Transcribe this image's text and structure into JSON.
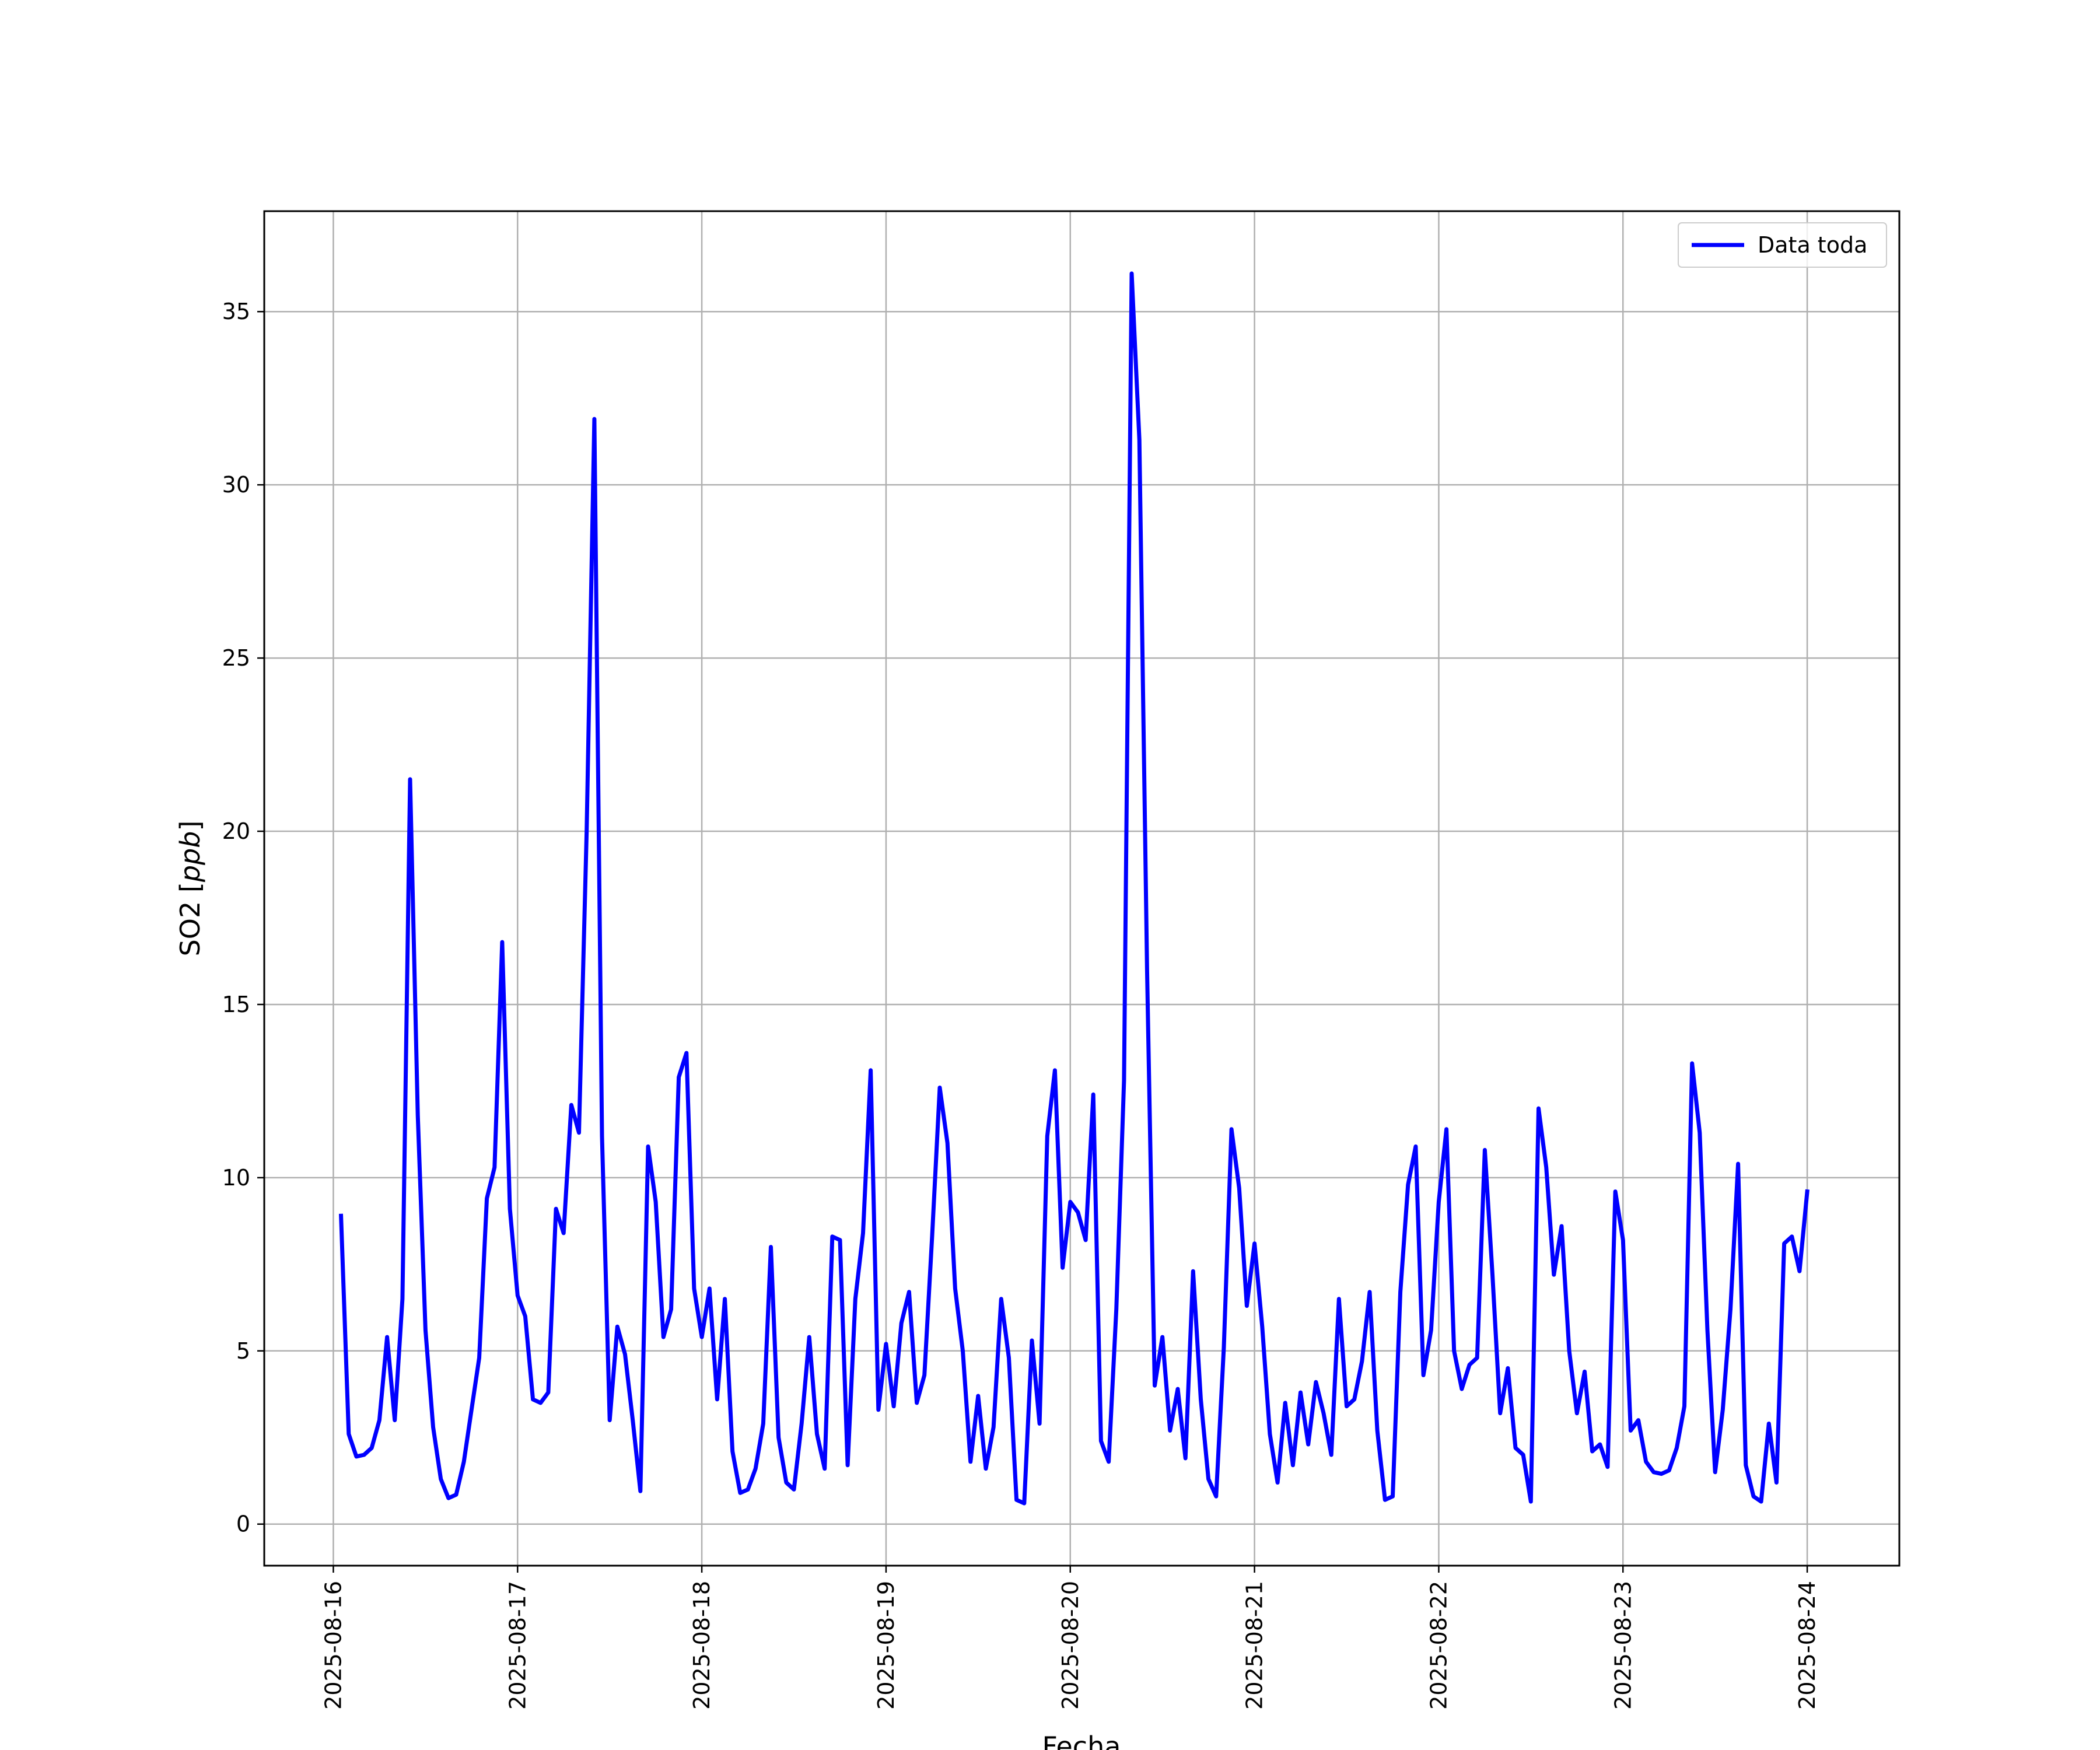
{
  "chart_data": {
    "type": "line",
    "title": "",
    "xlabel": "Fecha",
    "ylabel": "SO2 [ppb]",
    "ylabel_parts": {
      "main": "SO2 [",
      "italic": "ppb",
      "tail": "]"
    },
    "xlim": [
      "2025-08-15T15:00",
      "2025-08-24T12:00"
    ],
    "ylim": [
      -1.2,
      37.9
    ],
    "x_ticks": [
      "2025-08-16",
      "2025-08-17",
      "2025-08-18",
      "2025-08-19",
      "2025-08-20",
      "2025-08-21",
      "2025-08-22",
      "2025-08-23",
      "2025-08-24"
    ],
    "y_ticks": [
      0,
      5,
      10,
      15,
      20,
      25,
      30,
      35
    ],
    "y_tick_labels": [
      "0",
      "5",
      "10",
      "15",
      "20",
      "25",
      "30",
      "35"
    ],
    "grid": true,
    "legend_position": "top-right",
    "start_time": "2025-08-16T01:00",
    "interval_hours": 1,
    "series": [
      {
        "name": "Data toda",
        "color": "#0000ff",
        "values": [
          8.9,
          2.6,
          1.95,
          2.0,
          2.2,
          3.0,
          5.4,
          3.0,
          6.5,
          21.5,
          11.8,
          5.6,
          2.8,
          1.3,
          0.75,
          0.85,
          1.8,
          3.3,
          4.8,
          9.4,
          10.3,
          16.8,
          9.1,
          6.6,
          6.0,
          3.6,
          3.5,
          3.8,
          9.1,
          8.4,
          12.1,
          11.3,
          20.0,
          31.9,
          11.2,
          3.0,
          5.7,
          4.9,
          3.0,
          0.95,
          10.9,
          9.3,
          5.4,
          6.2,
          12.9,
          13.6,
          6.8,
          5.4,
          6.8,
          3.6,
          6.5,
          2.1,
          0.9,
          1.0,
          1.6,
          2.9,
          8.0,
          2.5,
          1.2,
          1.0,
          2.9,
          5.4,
          2.6,
          1.6,
          8.3,
          8.2,
          1.7,
          6.5,
          8.4,
          13.1,
          3.3,
          5.2,
          3.4,
          5.8,
          6.7,
          3.5,
          4.3,
          8.3,
          12.6,
          11.0,
          6.8,
          5.0,
          1.8,
          3.7,
          1.6,
          2.8,
          6.5,
          4.8,
          0.7,
          0.6,
          5.3,
          2.9,
          11.2,
          13.1,
          7.4,
          9.3,
          9.0,
          8.2,
          12.4,
          2.4,
          1.8,
          6.2,
          12.8,
          36.1,
          31.3,
          16.0,
          4.0,
          5.4,
          2.7,
          3.9,
          1.9,
          7.3,
          3.6,
          1.3,
          0.8,
          5.1,
          11.4,
          9.7,
          6.3,
          8.1,
          5.7,
          2.6,
          1.2,
          3.5,
          1.7,
          3.8,
          2.3,
          4.1,
          3.2,
          2.0,
          6.5,
          3.4,
          3.6,
          4.7,
          6.7,
          2.7,
          0.7,
          0.8,
          6.7,
          9.8,
          10.9,
          4.3,
          5.6,
          9.3,
          11.4,
          5.0,
          3.9,
          4.6,
          4.8,
          10.8,
          7.2,
          3.2,
          4.5,
          2.2,
          2.0,
          0.65,
          12.0,
          10.3,
          7.2,
          8.6,
          5.0,
          3.2,
          4.4,
          2.1,
          2.3,
          1.65,
          9.6,
          8.2,
          2.7,
          3.0,
          1.8,
          1.5,
          1.45,
          1.55,
          2.2,
          3.4,
          13.3,
          11.3,
          5.6,
          1.5,
          3.3,
          6.2,
          10.4,
          1.7,
          0.8,
          0.65,
          2.9,
          1.2,
          8.1,
          8.3,
          7.3,
          9.6
        ]
      }
    ]
  }
}
